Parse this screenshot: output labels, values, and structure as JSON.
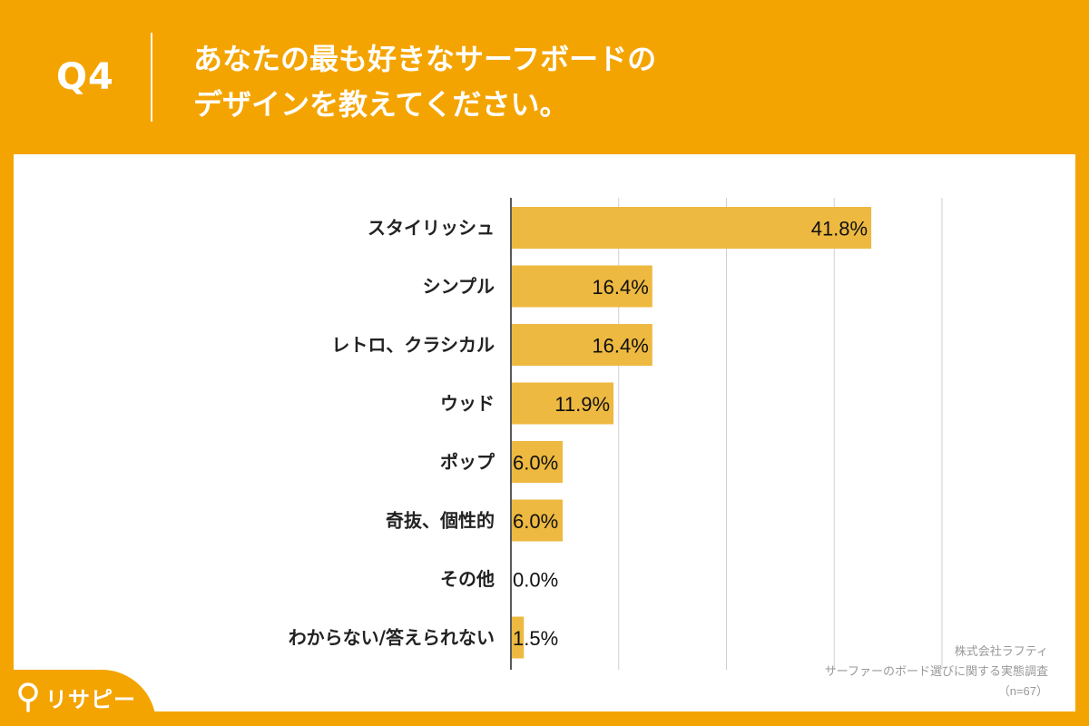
{
  "header": {
    "question": "Q4",
    "title_line1": "あなたの最も好きなサーフボードの",
    "title_line2": "デザインを教えてください。"
  },
  "source": {
    "line1": "株式会社ラフティ",
    "line2": "サーファーのボード選びに関する実態調査",
    "line3": "（n=67）"
  },
  "logo": {
    "text": "リサピー"
  },
  "colors": {
    "background": "#F4A400",
    "bar": "#EDB940",
    "grid": "#cfcfcf"
  },
  "chart_data": {
    "type": "bar",
    "orientation": "horizontal",
    "categories": [
      "スタイリッシュ",
      "シンプル",
      "レトロ、クラシカル",
      "ウッド",
      "ポップ",
      "奇抜、個性的",
      "その他",
      "わからない/答えられない"
    ],
    "values": [
      41.8,
      16.4,
      16.4,
      11.9,
      6.0,
      6.0,
      0.0,
      1.5
    ],
    "value_labels": [
      "41.8%",
      "16.4%",
      "16.4%",
      "11.9%",
      "6.0%",
      "6.0%",
      "0.0%",
      "1.5%"
    ],
    "xlim": [
      0,
      50
    ],
    "gridlines": [
      0,
      12.5,
      25,
      37.5,
      50
    ],
    "grid": true
  }
}
